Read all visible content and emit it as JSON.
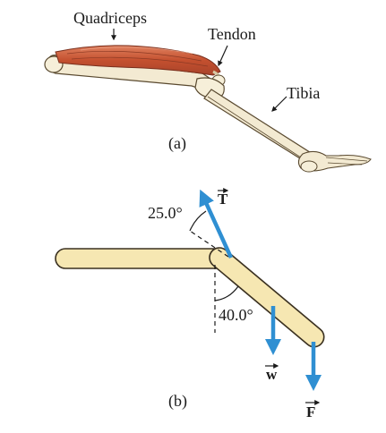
{
  "figure_a": {
    "caption": "(a)",
    "labels": {
      "quadriceps": "Quadriceps",
      "tendon": "Tendon",
      "tibia": "Tibia"
    }
  },
  "figure_b": {
    "caption": "(b)",
    "angle_tension": "25.0°",
    "angle_leg": "40.0°",
    "vectors": {
      "tension": "T",
      "weight": "w",
      "force": "F"
    }
  },
  "colors": {
    "bone": "#f6e7b2",
    "bone_outline": "#3a3020",
    "muscle": "#c9553a",
    "arrow": "#2f8fd2"
  }
}
